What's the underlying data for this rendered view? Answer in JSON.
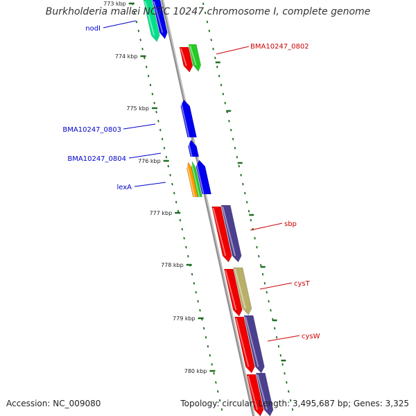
{
  "title": "Burkholderia mallei NCTC 10247 chromosome I, complete genome",
  "accession": "Accession: NC_009080",
  "summary": "Topology: circular; Length: 3,495,687 bp; Genes: 3,325",
  "colors": {
    "backbone": "#909090",
    "tick": "#1f6d1f",
    "label_left": "#0000cc",
    "label_right": "#cc0000"
  },
  "ticks": [
    "773 kbp",
    "774 kbp",
    "775 kbp",
    "776 kbp",
    "777 kbp",
    "778 kbp",
    "779 kbp",
    "780 kbp"
  ],
  "labels": {
    "left": [
      "nodI",
      "BMA10247_0803",
      "BMA10247_0804",
      "lexA"
    ],
    "right": [
      "BMA10247_0802",
      "sbp",
      "cysT",
      "cysW"
    ]
  },
  "feature_colors": [
    "#00e08a",
    "#0000ee",
    "#ee0000",
    "#22cc22",
    "#ff9900",
    "#4b3f8f",
    "#b8b068"
  ]
}
